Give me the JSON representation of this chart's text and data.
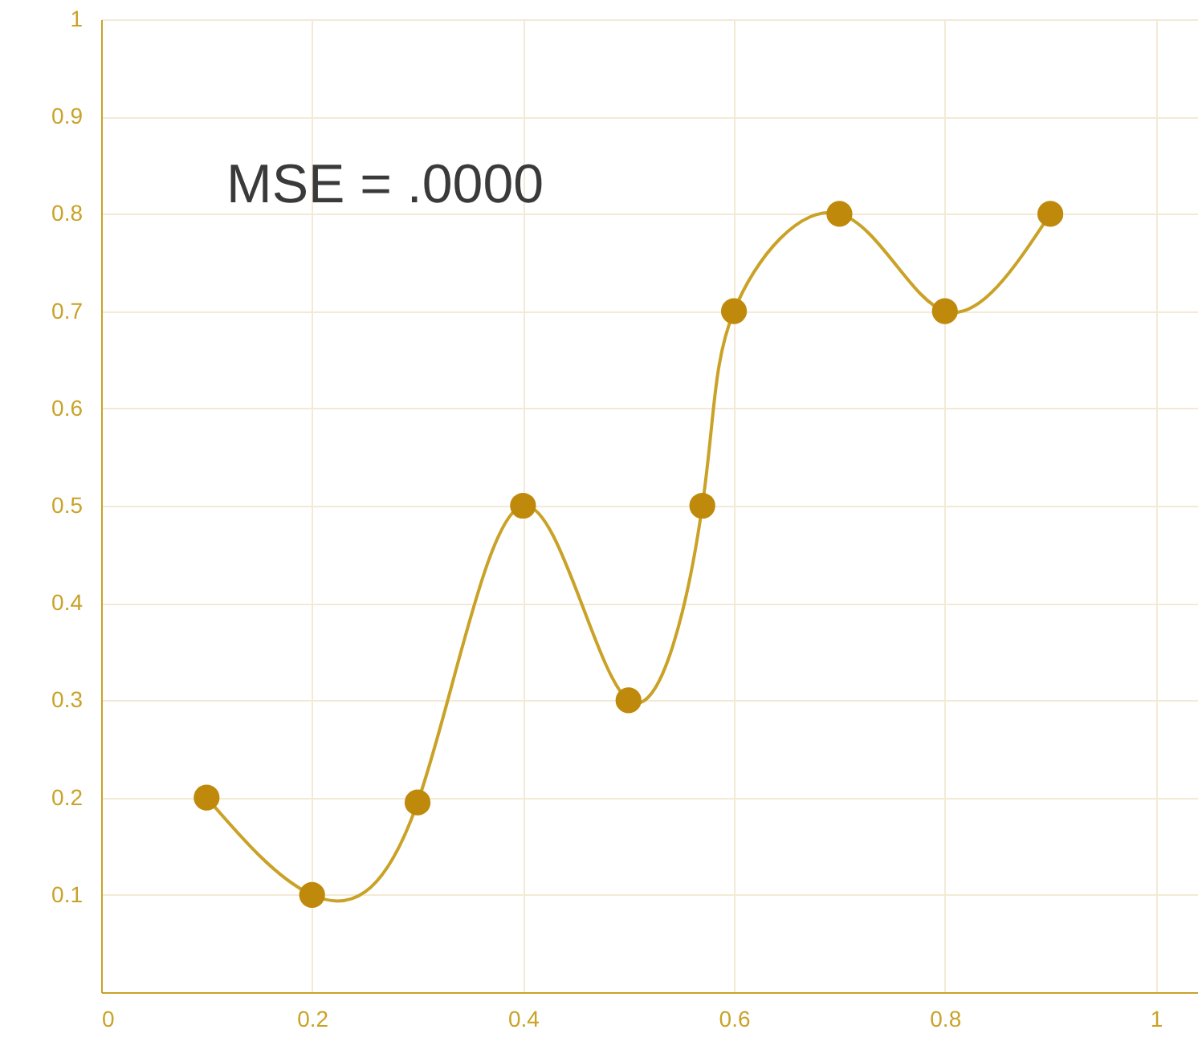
{
  "chart_data": {
    "type": "line",
    "x": [
      0.1,
      0.2,
      0.3,
      0.4,
      0.5,
      0.57,
      0.6,
      0.7,
      0.8,
      0.9
    ],
    "series": [
      {
        "color": "#bf8a0b",
        "values": [
          0.2,
          0.1,
          0.195,
          0.5,
          0.3,
          0.5,
          0.7,
          0.8,
          0.7,
          0.8
        ]
      }
    ],
    "xlim": [
      0,
      1.04
    ],
    "ylim": [
      0,
      1
    ],
    "xticks": [
      0,
      0.2,
      0.4,
      0.6,
      0.8,
      1
    ],
    "yticks": [
      0.1,
      0.2,
      0.3,
      0.4,
      0.5,
      0.6,
      0.7,
      0.8,
      0.9,
      1
    ],
    "grid": true,
    "marker": "circle",
    "line_style": "solid",
    "annotations": [
      "MSE = .0000"
    ]
  }
}
